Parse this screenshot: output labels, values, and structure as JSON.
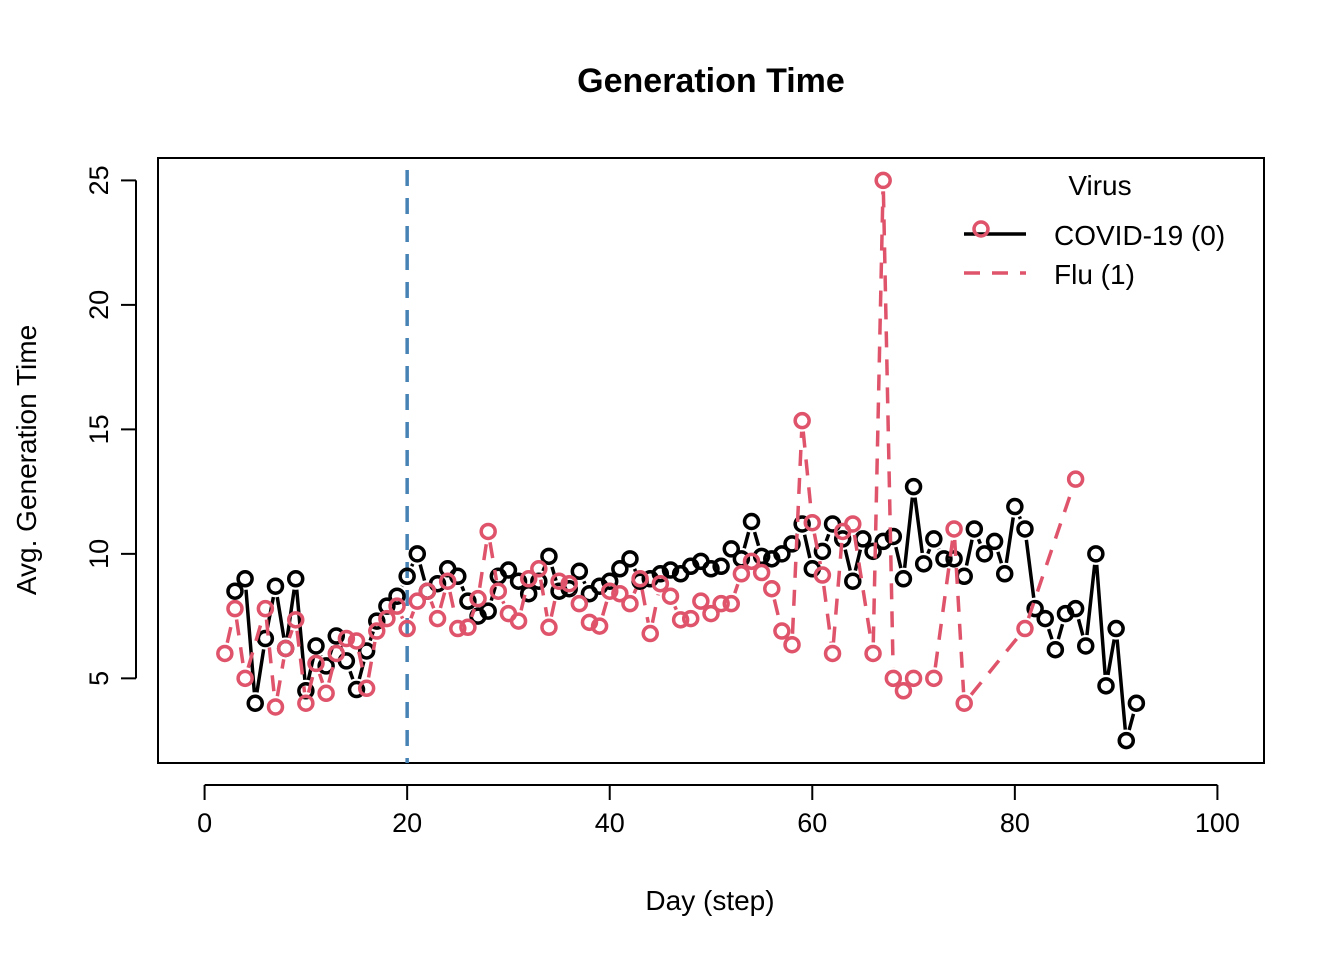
{
  "chart_data": {
    "type": "line",
    "title": "Generation Time",
    "xlabel": "Day (step)",
    "ylabel": "Avg. Generation Time",
    "xlim": [
      -4.6,
      104.6
    ],
    "ylim": [
      1.6,
      25.9
    ],
    "x_ticks": [
      0,
      20,
      40,
      60,
      80,
      100
    ],
    "y_ticks": [
      5,
      10,
      15,
      20,
      25
    ],
    "grid": false,
    "legend": {
      "title": "Virus",
      "position": "top-right"
    },
    "vline": {
      "x": 20,
      "color": "#4682b4",
      "style": "dashed"
    },
    "series": [
      {
        "name": "COVID-19 (0)",
        "color": "#000000",
        "line": "solid",
        "marker": "open-circle",
        "x": [
          3,
          4,
          5,
          6,
          7,
          8,
          9,
          10,
          11,
          12,
          13,
          14,
          15,
          16,
          17,
          18,
          19,
          20,
          21,
          22,
          23,
          24,
          25,
          26,
          27,
          28,
          29,
          30,
          31,
          32,
          33,
          34,
          35,
          36,
          37,
          38,
          39,
          40,
          41,
          42,
          43,
          44,
          45,
          46,
          47,
          48,
          49,
          50,
          51,
          52,
          53,
          54,
          55,
          56,
          57,
          58,
          59,
          60,
          61,
          62,
          63,
          64,
          65,
          66,
          67,
          68,
          69,
          70,
          71,
          72,
          73,
          74,
          75,
          76,
          77,
          78,
          79,
          80,
          81,
          82,
          83,
          84,
          85,
          86,
          87,
          88,
          89,
          90,
          91,
          92
        ],
        "y": [
          8.5,
          9.0,
          4.0,
          6.6,
          8.7,
          6.2,
          9.0,
          4.5,
          6.3,
          5.5,
          6.7,
          5.7,
          4.55,
          6.1,
          7.3,
          7.9,
          8.3,
          9.1,
          10.0,
          8.5,
          8.8,
          9.4,
          9.1,
          8.1,
          7.5,
          7.7,
          9.1,
          9.35,
          8.9,
          8.4,
          8.9,
          9.9,
          8.5,
          8.6,
          9.3,
          8.4,
          8.7,
          8.9,
          9.4,
          9.8,
          8.9,
          9.0,
          9.2,
          9.35,
          9.2,
          9.5,
          9.7,
          9.4,
          9.5,
          10.2,
          9.8,
          11.3,
          9.9,
          9.8,
          10.0,
          10.4,
          11.2,
          9.4,
          10.1,
          11.2,
          10.6,
          8.9,
          10.6,
          10.1,
          10.5,
          10.7,
          9.0,
          12.7,
          9.6,
          10.6,
          9.8,
          9.8,
          9.1,
          11.0,
          10.0,
          10.5,
          9.2,
          11.9,
          11.0,
          7.8,
          7.4,
          6.15,
          7.6,
          7.8,
          6.3,
          10.0,
          4.7,
          7.0,
          2.5,
          4.0
        ]
      },
      {
        "name": "Flu (1)",
        "color": "#df536b",
        "line": "dashed",
        "marker": "open-circle",
        "x": [
          2,
          3,
          4,
          6,
          7,
          8,
          9,
          10,
          11,
          12,
          13,
          14,
          15,
          16,
          17,
          18,
          19,
          20,
          21,
          22,
          23,
          24,
          25,
          26,
          27,
          28,
          29,
          30,
          31,
          32,
          33,
          34,
          35,
          36,
          37,
          38,
          39,
          40,
          41,
          42,
          43,
          44,
          45,
          46,
          47,
          48,
          49,
          50,
          51,
          52,
          53,
          54,
          55,
          56,
          57,
          58,
          59,
          60,
          61,
          62,
          63,
          64,
          66,
          67,
          68,
          69,
          70,
          72,
          74,
          75,
          81,
          86
        ],
        "y": [
          6.0,
          7.8,
          5.0,
          7.8,
          3.85,
          6.2,
          7.35,
          4.0,
          5.6,
          4.4,
          6.0,
          6.6,
          6.5,
          4.6,
          6.9,
          7.4,
          7.9,
          7.0,
          8.1,
          8.5,
          7.4,
          8.9,
          7.0,
          7.05,
          8.2,
          10.9,
          8.5,
          7.6,
          7.3,
          9.0,
          9.4,
          7.05,
          8.9,
          8.8,
          8.0,
          7.25,
          7.1,
          8.5,
          8.4,
          8.0,
          9.0,
          6.8,
          8.8,
          8.3,
          7.35,
          7.4,
          8.1,
          7.6,
          8.0,
          8.0,
          9.2,
          9.7,
          9.25,
          8.6,
          6.9,
          6.35,
          15.35,
          11.25,
          9.15,
          6.0,
          10.9,
          11.2,
          6.0,
          25.0,
          5.0,
          4.5,
          5.0,
          5.0,
          11.0,
          4.0,
          7.0,
          13.0
        ]
      }
    ]
  }
}
